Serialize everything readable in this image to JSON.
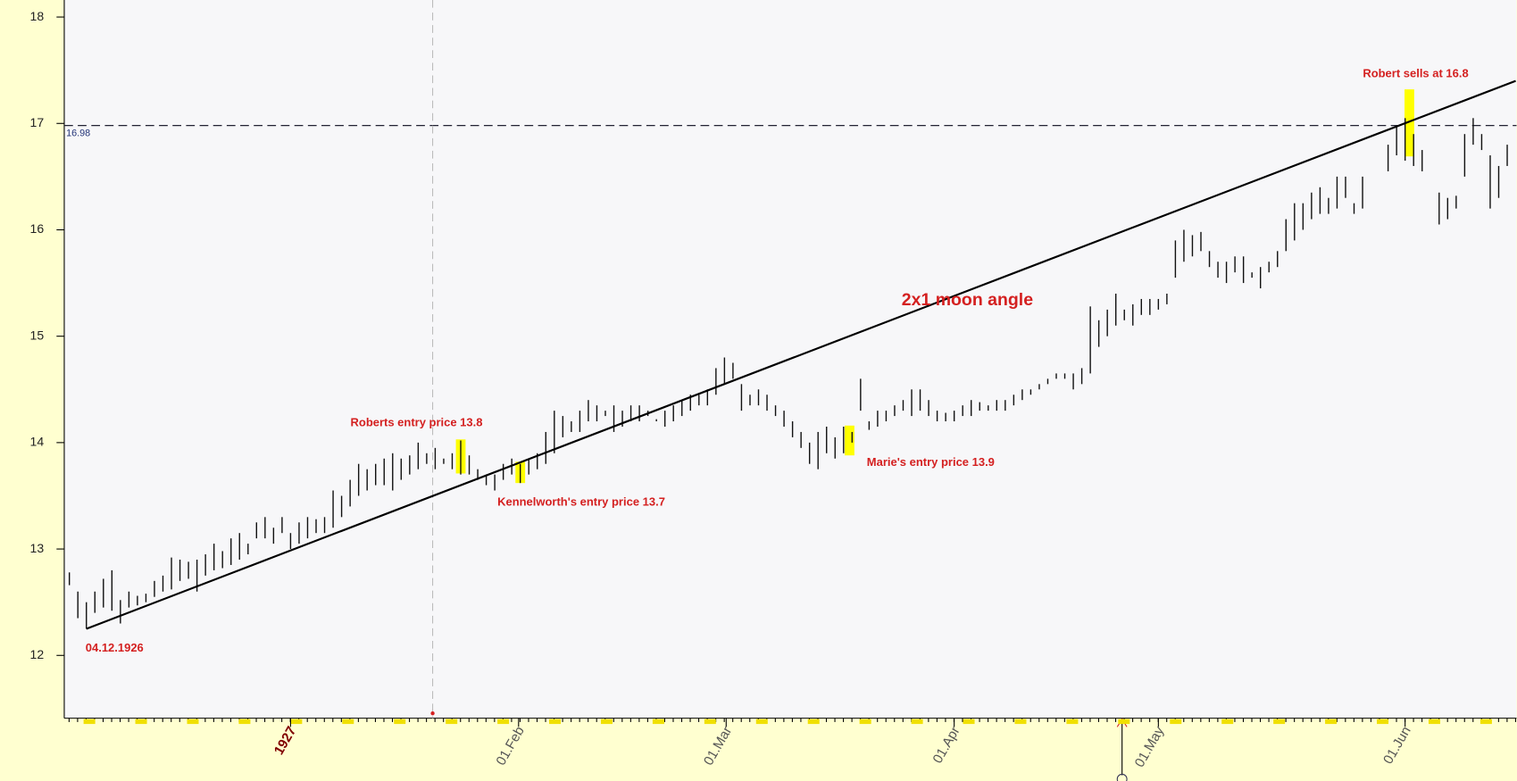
{
  "chart_data": {
    "type": "range_bar",
    "ylim": [
      11.41,
      18.16
    ],
    "yticks": [
      12,
      13,
      14,
      15,
      16,
      17,
      18
    ],
    "xlim": [
      -0.6,
      170.1
    ],
    "xticks": [
      {
        "value": 26,
        "label": "1927"
      },
      {
        "value": 52.8,
        "label": "01.Feb"
      },
      {
        "value": 77.2,
        "label": "01.Mar"
      },
      {
        "value": 104,
        "label": "01.Apr"
      },
      {
        "value": 128,
        "label": "01.May"
      },
      {
        "value": 157,
        "label": "01.Jun"
      }
    ],
    "low": [
      12.66,
      12.35,
      12.25,
      12.4,
      12.45,
      12.42,
      12.3,
      12.45,
      12.47,
      12.5,
      12.55,
      12.6,
      12.62,
      12.7,
      12.72,
      12.6,
      12.75,
      12.8,
      12.82,
      12.85,
      12.9,
      12.95,
      13.1,
      13.1,
      13.05,
      13.15,
      13.0,
      13.05,
      13.1,
      13.15,
      13.15,
      13.2,
      13.3,
      13.4,
      13.5,
      13.55,
      13.6,
      13.6,
      13.55,
      13.65,
      13.7,
      13.75,
      13.8,
      13.75,
      13.8,
      13.75,
      13.7,
      13.7,
      13.65,
      13.6,
      13.55,
      13.65,
      13.7,
      13.62,
      13.7,
      13.75,
      13.8,
      13.9,
      14.05,
      14.1,
      14.1,
      14.2,
      14.2,
      14.25,
      14.1,
      14.15,
      14.2,
      14.2,
      14.25,
      14.2,
      14.15,
      14.2,
      14.25,
      14.3,
      14.35,
      14.35,
      14.45,
      14.55,
      14.6,
      14.3,
      14.35,
      14.35,
      14.3,
      14.25,
      14.15,
      14.05,
      13.95,
      13.8,
      13.75,
      13.9,
      13.85,
      13.9,
      14.0,
      14.3,
      14.12,
      14.15,
      14.2,
      14.25,
      14.3,
      14.25,
      14.3,
      14.25,
      14.2,
      14.2,
      14.2,
      14.25,
      14.25,
      14.3,
      14.3,
      14.3,
      14.3,
      14.35,
      14.4,
      14.45,
      14.5,
      14.55,
      14.6,
      14.6,
      14.5,
      14.55,
      14.65,
      14.9,
      15.0,
      15.1,
      15.15,
      15.1,
      15.2,
      15.2,
      15.25,
      15.3,
      15.55,
      15.7,
      15.75,
      15.8,
      15.65,
      15.55,
      15.5,
      15.6,
      15.5,
      15.55,
      15.45,
      15.6,
      15.65,
      15.8,
      15.9,
      16.0,
      16.1,
      16.15,
      16.15,
      16.2,
      16.3,
      16.15,
      16.2,
      null,
      null,
      16.55,
      16.7,
      16.65,
      16.6,
      16.55,
      null,
      16.05,
      16.1,
      16.2,
      16.5,
      16.8,
      16.75,
      16.2,
      16.3,
      16.6
    ],
    "high": [
      12.78,
      12.6,
      12.5,
      12.6,
      12.72,
      12.8,
      12.52,
      12.6,
      12.56,
      12.58,
      12.7,
      12.75,
      12.92,
      12.9,
      12.88,
      12.9,
      12.95,
      13.05,
      12.98,
      13.1,
      13.15,
      13.05,
      13.25,
      13.3,
      13.2,
      13.3,
      13.15,
      13.25,
      13.3,
      13.28,
      13.3,
      13.55,
      13.5,
      13.65,
      13.8,
      13.75,
      13.8,
      13.85,
      13.9,
      13.85,
      13.88,
      14.0,
      13.9,
      13.95,
      13.85,
      13.9,
      14.02,
      13.88,
      13.75,
      13.7,
      13.7,
      13.8,
      13.85,
      13.8,
      13.85,
      13.9,
      14.1,
      14.3,
      14.25,
      14.2,
      14.3,
      14.4,
      14.35,
      14.3,
      14.35,
      14.3,
      14.35,
      14.35,
      14.3,
      14.22,
      14.3,
      14.35,
      14.4,
      14.45,
      14.45,
      14.5,
      14.7,
      14.8,
      14.75,
      14.55,
      14.45,
      14.5,
      14.45,
      14.35,
      14.3,
      14.2,
      14.1,
      14.0,
      14.1,
      14.15,
      14.05,
      14.15,
      14.1,
      14.6,
      14.2,
      14.3,
      14.3,
      14.35,
      14.4,
      14.5,
      14.5,
      14.4,
      14.3,
      14.28,
      14.3,
      14.35,
      14.4,
      14.38,
      14.35,
      14.4,
      14.4,
      14.45,
      14.5,
      14.5,
      14.55,
      14.6,
      14.65,
      14.65,
      14.65,
      14.7,
      15.28,
      15.15,
      15.25,
      15.4,
      15.25,
      15.3,
      15.35,
      15.35,
      15.35,
      15.4,
      15.9,
      16.0,
      15.95,
      15.98,
      15.8,
      15.7,
      15.7,
      15.75,
      15.75,
      15.6,
      15.65,
      15.7,
      15.8,
      16.1,
      16.25,
      16.25,
      16.35,
      16.4,
      16.3,
      16.5,
      16.5,
      16.25,
      16.5,
      null,
      null,
      16.8,
      16.98,
      17.05,
      16.9,
      16.75,
      null,
      16.35,
      16.3,
      16.32,
      16.9,
      17.05,
      16.9,
      16.7,
      16.6,
      16.8
    ],
    "angle_line": {
      "x": [
        2,
        106,
        170
      ],
      "values": [
        12.25,
        15.44,
        17.4
      ],
      "label": "2x1 moon angle"
    },
    "hline": 16.98,
    "cursor_x": 42.7,
    "start_label": "04.12.1926",
    "highlights": [
      {
        "x": 46,
        "low": 13.71,
        "high": 14.03,
        "text": "Roberts entry price 13.8"
      },
      {
        "x": 53,
        "low": 13.62,
        "high": 13.82,
        "text": "Kennelworth's entry price 13.7"
      },
      {
        "x": 91.7,
        "low": 13.88,
        "high": 14.16,
        "text": "Marie's entry price 13.9"
      },
      {
        "x": 157.5,
        "low": 16.69,
        "high": 17.32,
        "text": "Robert sells at 16.8"
      }
    ]
  }
}
